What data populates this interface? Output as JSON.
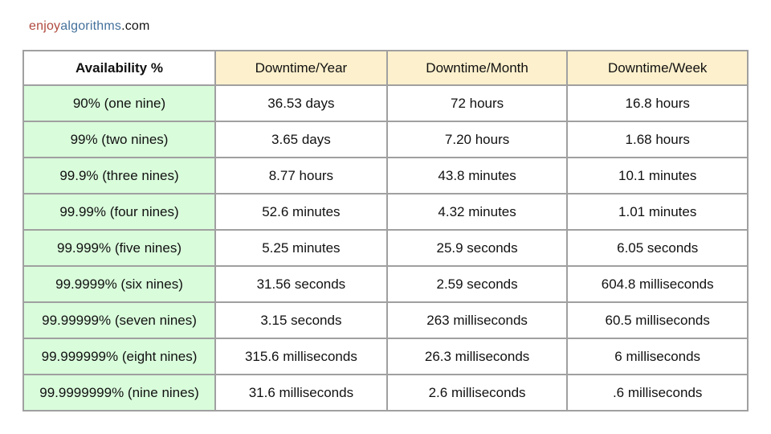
{
  "logo": {
    "enjoy": "enjoy",
    "algorithms": "algorithms",
    "com": ".com",
    "enjoy_color": "#b04a3e",
    "algorithms_color": "#44719b"
  },
  "colors": {
    "header_bg": "#fdf0cc",
    "availability_col_bg": "#d9fcdb",
    "cell_bg": "#ffffff",
    "border": "#a0a0a0",
    "text": "#111111"
  },
  "chart_data": {
    "type": "table",
    "title": "",
    "columns": [
      "Availability %",
      "Downtime/Year",
      "Downtime/Month",
      "Downtime/Week"
    ],
    "rows": [
      [
        "90% (one nine)",
        "36.53 days",
        "72 hours",
        "16.8 hours"
      ],
      [
        "99% (two nines)",
        "3.65 days",
        "7.20 hours",
        "1.68 hours"
      ],
      [
        "99.9% (three nines)",
        "8.77 hours",
        "43.8 minutes",
        "10.1 minutes"
      ],
      [
        "99.99% (four nines)",
        "52.6 minutes",
        "4.32 minutes",
        "1.01 minutes"
      ],
      [
        "99.999% (five nines)",
        "5.25 minutes",
        "25.9 seconds",
        "6.05 seconds"
      ],
      [
        "99.9999% (six nines)",
        "31.56 seconds",
        "2.59 seconds",
        "604.8 milliseconds"
      ],
      [
        "99.99999% (seven nines)",
        "3.15 seconds",
        "263 milliseconds",
        "60.5 milliseconds"
      ],
      [
        "99.999999% (eight nines)",
        "315.6 milliseconds",
        "26.3 milliseconds",
        "6 milliseconds"
      ],
      [
        "99.9999999% (nine nines)",
        "31.6 milliseconds",
        "2.6 milliseconds",
        ".6 milliseconds"
      ]
    ]
  }
}
